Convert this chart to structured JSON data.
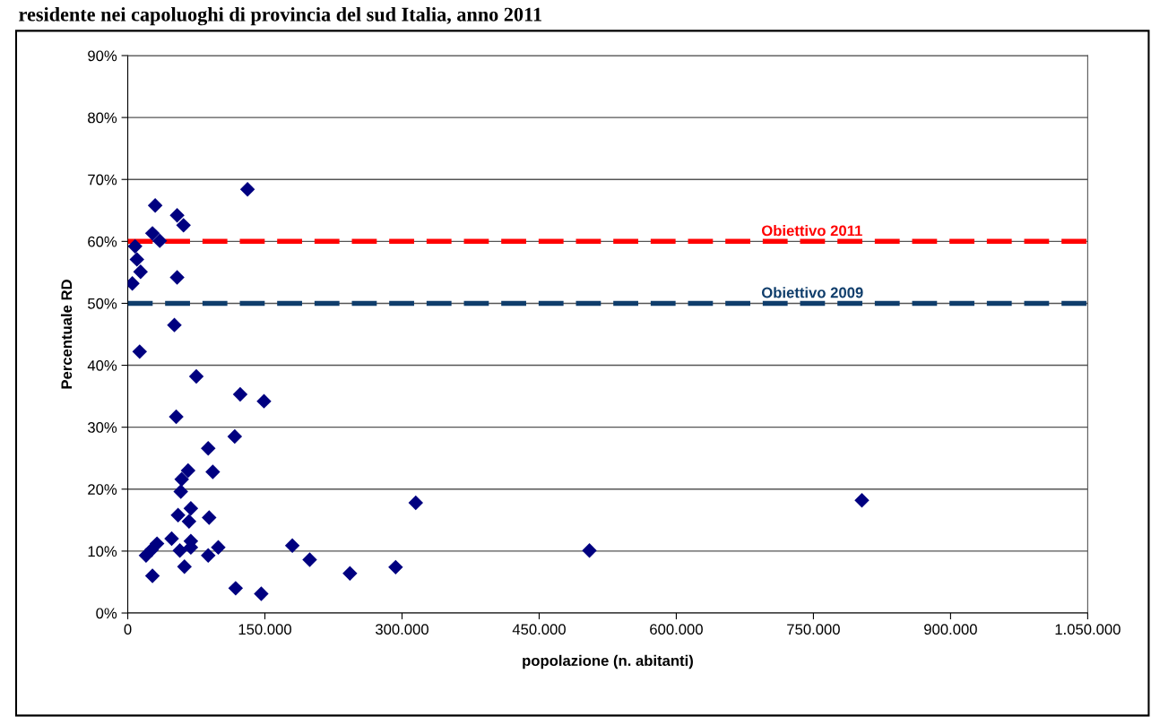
{
  "chart_data": {
    "type": "scatter",
    "title": "residente nei capoluoghi di provincia del sud Italia, anno 2011",
    "xlabel": "popolazione (n. abitanti)",
    "ylabel": "Percentuale RD",
    "x": [
      131000,
      30000,
      54000,
      61000,
      27000,
      35000,
      8000,
      10000,
      14000,
      5000,
      54000,
      51000,
      13000,
      75000,
      123000,
      149000,
      53000,
      117000,
      88000,
      66000,
      93000,
      59000,
      58000,
      69000,
      55000,
      67000,
      89000,
      48000,
      32000,
      26000,
      20000,
      69000,
      69000,
      57000,
      99000,
      88000,
      62000,
      27000,
      118000,
      146000,
      180000,
      199000,
      243000,
      293000,
      315000,
      505000,
      803000
    ],
    "values": [
      68.4,
      65.8,
      64.2,
      62.6,
      61.3,
      60.1,
      59.2,
      57.1,
      55.1,
      53.2,
      54.2,
      46.5,
      42.2,
      38.2,
      35.3,
      34.2,
      31.7,
      28.5,
      26.6,
      23.0,
      22.8,
      21.6,
      19.6,
      16.9,
      15.8,
      14.8,
      15.4,
      12.0,
      11.2,
      10.2,
      9.3,
      11.6,
      10.6,
      10.1,
      10.6,
      9.3,
      7.5,
      6.0,
      4.0,
      3.1,
      10.9,
      8.6,
      6.4,
      7.4,
      17.8,
      10.1,
      18.2
    ],
    "color": "#000080",
    "marker": "diamond",
    "grid": "y",
    "xlim": [
      0,
      1050000
    ],
    "xticks": [
      {
        "value": 0,
        "label": "0"
      },
      {
        "value": 150000,
        "label": "150.000"
      },
      {
        "value": 300000,
        "label": "300.000"
      },
      {
        "value": 450000,
        "label": "450.000"
      },
      {
        "value": 600000,
        "label": "600.000"
      },
      {
        "value": 750000,
        "label": "750.000"
      },
      {
        "value": 900000,
        "label": "900.000"
      },
      {
        "value": 1050000,
        "label": "1.050.000"
      }
    ],
    "ylim": [
      0,
      90
    ],
    "yticks": [
      {
        "value": 0,
        "label": "0%"
      },
      {
        "value": 10,
        "label": "10%"
      },
      {
        "value": 20,
        "label": "20%"
      },
      {
        "value": 30,
        "label": "30%"
      },
      {
        "value": 40,
        "label": "40%"
      },
      {
        "value": 50,
        "label": "50%"
      },
      {
        "value": 60,
        "label": "60%"
      },
      {
        "value": 70,
        "label": "70%"
      },
      {
        "value": 80,
        "label": "80%"
      },
      {
        "value": 90,
        "label": "90%"
      }
    ],
    "ref_lines": [
      {
        "axis": "y",
        "value": 60,
        "label": "Obiettivo 2011",
        "color": "#ff0000",
        "line_style": "dashed"
      },
      {
        "axis": "y",
        "value": 50,
        "label": "Obiettivo 2009",
        "color": "#0f3d6b",
        "line_style": "dashed"
      }
    ]
  }
}
